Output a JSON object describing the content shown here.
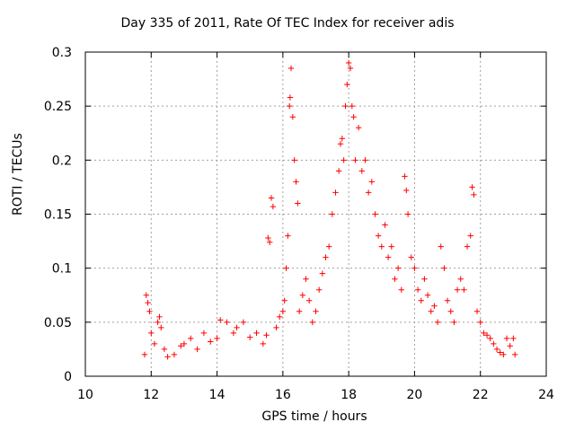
{
  "chart_data": {
    "type": "scatter",
    "title": "Day 335 of 2011, Rate Of TEC Index for receiver adis",
    "xlabel": "GPS time / hours",
    "ylabel": "ROTI / TECUs",
    "xlim": [
      10,
      24
    ],
    "ylim": [
      0,
      0.3
    ],
    "xticks": [
      10,
      12,
      14,
      16,
      18,
      20,
      22,
      24
    ],
    "yticks": [
      0,
      0.05,
      0.1,
      0.15,
      0.2,
      0.25,
      0.3
    ],
    "xtick_labels": [
      "10",
      "12",
      "14",
      "16",
      "18",
      "20",
      "22",
      "24"
    ],
    "ytick_labels": [
      "0",
      "0.05",
      "0.1",
      "0.15",
      "0.2",
      "0.25",
      "0.3"
    ],
    "grid": true,
    "marker": "+",
    "color": "#ff0000",
    "series": [
      {
        "points": [
          [
            11.8,
            0.02
          ],
          [
            11.85,
            0.075
          ],
          [
            11.9,
            0.068
          ],
          [
            11.95,
            0.06
          ],
          [
            12.0,
            0.04
          ],
          [
            12.1,
            0.03
          ],
          [
            12.2,
            0.05
          ],
          [
            12.25,
            0.055
          ],
          [
            12.3,
            0.045
          ],
          [
            12.4,
            0.025
          ],
          [
            12.5,
            0.018
          ],
          [
            12.7,
            0.02
          ],
          [
            12.9,
            0.028
          ],
          [
            13.0,
            0.03
          ],
          [
            13.2,
            0.035
          ],
          [
            13.4,
            0.025
          ],
          [
            13.6,
            0.04
          ],
          [
            13.8,
            0.032
          ],
          [
            14.0,
            0.035
          ],
          [
            14.1,
            0.052
          ],
          [
            14.3,
            0.05
          ],
          [
            14.5,
            0.04
          ],
          [
            14.6,
            0.045
          ],
          [
            14.8,
            0.05
          ],
          [
            15.0,
            0.036
          ],
          [
            15.2,
            0.04
          ],
          [
            15.4,
            0.03
          ],
          [
            15.5,
            0.038
          ],
          [
            15.55,
            0.128
          ],
          [
            15.6,
            0.124
          ],
          [
            15.65,
            0.165
          ],
          [
            15.7,
            0.157
          ],
          [
            15.8,
            0.045
          ],
          [
            15.9,
            0.055
          ],
          [
            16.0,
            0.06
          ],
          [
            16.05,
            0.07
          ],
          [
            16.1,
            0.1
          ],
          [
            16.15,
            0.13
          ],
          [
            16.2,
            0.25
          ],
          [
            16.22,
            0.258
          ],
          [
            16.25,
            0.285
          ],
          [
            16.3,
            0.24
          ],
          [
            16.35,
            0.2
          ],
          [
            16.4,
            0.18
          ],
          [
            16.45,
            0.16
          ],
          [
            16.5,
            0.06
          ],
          [
            16.6,
            0.075
          ],
          [
            16.7,
            0.09
          ],
          [
            16.8,
            0.07
          ],
          [
            16.9,
            0.05
          ],
          [
            17.0,
            0.06
          ],
          [
            17.1,
            0.08
          ],
          [
            17.2,
            0.095
          ],
          [
            17.3,
            0.11
          ],
          [
            17.4,
            0.12
          ],
          [
            17.5,
            0.15
          ],
          [
            17.6,
            0.17
          ],
          [
            17.7,
            0.19
          ],
          [
            17.75,
            0.215
          ],
          [
            17.8,
            0.22
          ],
          [
            17.85,
            0.2
          ],
          [
            17.9,
            0.25
          ],
          [
            17.95,
            0.27
          ],
          [
            18.0,
            0.29
          ],
          [
            18.05,
            0.285
          ],
          [
            18.1,
            0.25
          ],
          [
            18.15,
            0.24
          ],
          [
            18.2,
            0.2
          ],
          [
            18.3,
            0.23
          ],
          [
            18.4,
            0.19
          ],
          [
            18.5,
            0.2
          ],
          [
            18.6,
            0.17
          ],
          [
            18.7,
            0.18
          ],
          [
            18.8,
            0.15
          ],
          [
            18.9,
            0.13
          ],
          [
            19.0,
            0.12
          ],
          [
            19.1,
            0.14
          ],
          [
            19.2,
            0.11
          ],
          [
            19.3,
            0.12
          ],
          [
            19.4,
            0.09
          ],
          [
            19.5,
            0.1
          ],
          [
            19.6,
            0.08
          ],
          [
            19.7,
            0.185
          ],
          [
            19.75,
            0.172
          ],
          [
            19.8,
            0.15
          ],
          [
            19.9,
            0.11
          ],
          [
            20.0,
            0.1
          ],
          [
            20.1,
            0.08
          ],
          [
            20.2,
            0.07
          ],
          [
            20.3,
            0.09
          ],
          [
            20.4,
            0.075
          ],
          [
            20.5,
            0.06
          ],
          [
            20.6,
            0.065
          ],
          [
            20.7,
            0.05
          ],
          [
            20.8,
            0.12
          ],
          [
            20.9,
            0.1
          ],
          [
            21.0,
            0.07
          ],
          [
            21.1,
            0.06
          ],
          [
            21.2,
            0.05
          ],
          [
            21.3,
            0.08
          ],
          [
            21.4,
            0.09
          ],
          [
            21.5,
            0.08
          ],
          [
            21.6,
            0.12
          ],
          [
            21.7,
            0.13
          ],
          [
            21.75,
            0.175
          ],
          [
            21.8,
            0.168
          ],
          [
            21.9,
            0.06
          ],
          [
            22.0,
            0.05
          ],
          [
            22.1,
            0.04
          ],
          [
            22.2,
            0.038
          ],
          [
            22.3,
            0.035
          ],
          [
            22.4,
            0.03
          ],
          [
            22.5,
            0.025
          ],
          [
            22.6,
            0.022
          ],
          [
            22.7,
            0.02
          ],
          [
            22.8,
            0.035
          ],
          [
            22.9,
            0.028
          ],
          [
            23.0,
            0.035
          ],
          [
            23.05,
            0.02
          ]
        ]
      }
    ]
  }
}
